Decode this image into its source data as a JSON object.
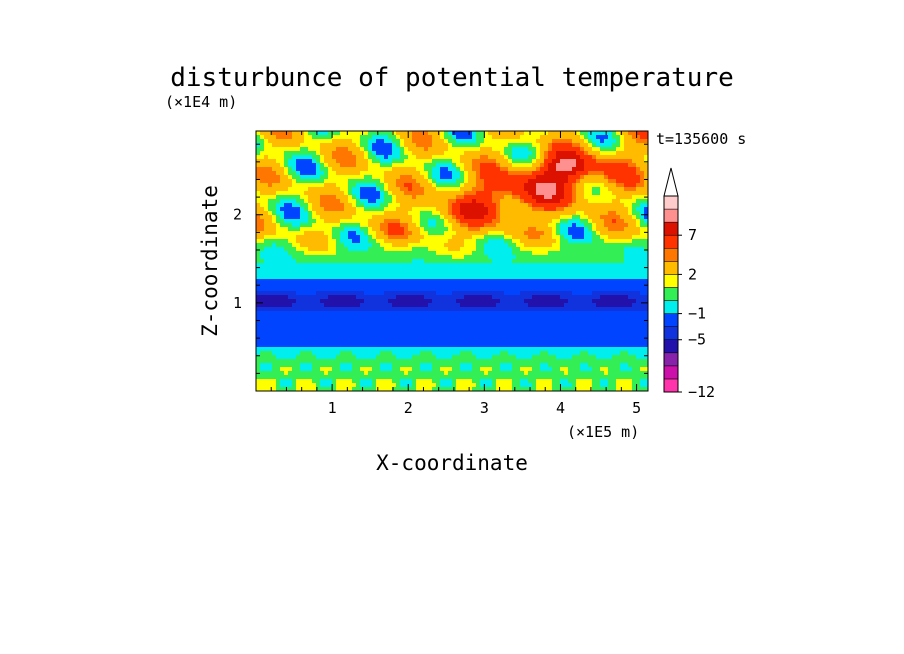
{
  "chart_data": {
    "type": "heatmap",
    "title": "disturbunce of potential temperature",
    "xlabel": "X-coordinate",
    "ylabel": "Z-coordinate",
    "x_unit": "(×1E5 m)",
    "y_unit": "(×1E4 m)",
    "annotation": "t=135600 s",
    "xlim": [
      0,
      5.15
    ],
    "ylim": [
      0,
      2.95
    ],
    "x_ticks": [
      "1",
      "2",
      "3",
      "4",
      "5"
    ],
    "y_ticks": [
      "1",
      "2"
    ],
    "colorbar": {
      "tick_labels": [
        "7",
        "2",
        "−1",
        "−5",
        "−12"
      ],
      "colors": [
        "#ff33aa",
        "#cc11aa",
        "#8822aa",
        "#2211aa",
        "#1133dd",
        "#0044ff",
        "#00eeee",
        "#33ee55",
        "#ffff00",
        "#ffbb00",
        "#ff7700",
        "#ff3300",
        "#dd1100",
        "#ff9090",
        "#ffcccc"
      ],
      "extend_top": true
    },
    "field_regions": [
      {
        "level": "cold_core",
        "z_range": [
          0.8,
          1.25
        ],
        "value": "-5 to -4"
      },
      {
        "level": "warm_band",
        "x_range": [
          2.5,
          4.2
        ],
        "z_range": [
          1.8,
          2.65
        ],
        "value": "2 to 7"
      },
      {
        "level": "lower_mixed",
        "z_range": [
          0,
          0.6
        ],
        "value": "-1 to 2"
      }
    ]
  }
}
